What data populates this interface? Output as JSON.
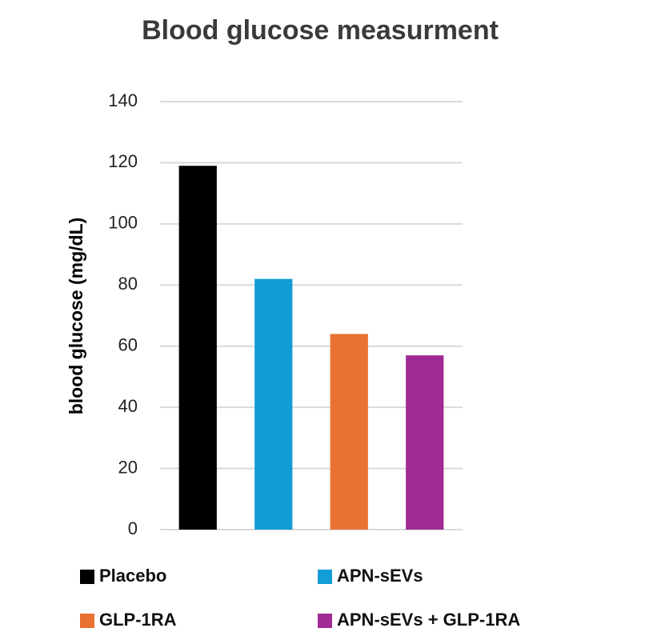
{
  "chart_data": {
    "type": "bar",
    "title": "Blood glucose measurment",
    "y_label": "blood glucose (mg/dL)",
    "series": [
      {
        "name": "Placebo",
        "color": "#000000",
        "values": [
          119
        ]
      },
      {
        "name": "APN-sEVs",
        "color": "#139dd6",
        "values": [
          82
        ]
      },
      {
        "name": "GLP-1RA",
        "color": "#e97132",
        "values": [
          64
        ]
      },
      {
        "name": "APN-sEVs + GLP-1RA",
        "color": "#a02b93",
        "values": [
          57
        ]
      }
    ],
    "ylim": [
      0,
      140
    ],
    "yticks": [
      0,
      20,
      40,
      60,
      80,
      100,
      120,
      140
    ],
    "grid": true,
    "legend": "bottom"
  }
}
